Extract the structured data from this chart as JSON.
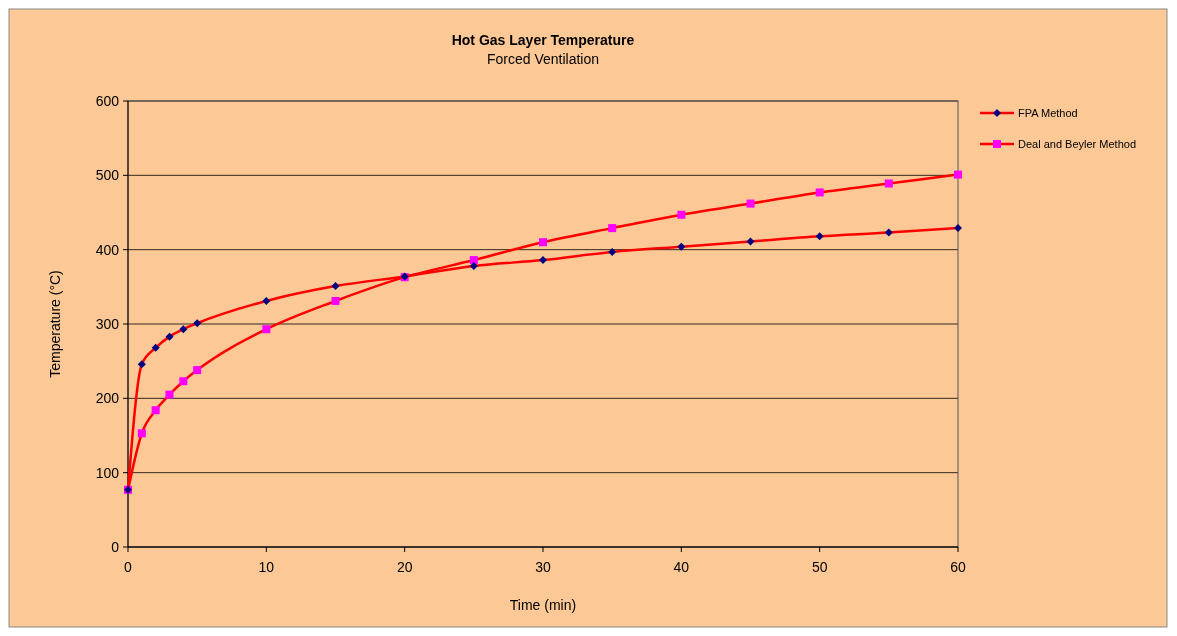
{
  "chart_data": {
    "type": "line",
    "title": "Hot Gas Layer  Temperature",
    "subtitle": "Forced Ventilation",
    "xlabel": "Time (min)",
    "ylabel": "Temperature  (°C)",
    "x": [
      0,
      1,
      2,
      3,
      4,
      5,
      10,
      15,
      20,
      25,
      30,
      35,
      40,
      45,
      50,
      55,
      60
    ],
    "xlim": [
      0,
      60
    ],
    "xticks": [
      0,
      10,
      20,
      30,
      40,
      50,
      60
    ],
    "ylim": [
      0,
      600
    ],
    "yticks": [
      0,
      100,
      200,
      300,
      400,
      500,
      600
    ],
    "grid": "y",
    "legend": "right",
    "line_style": "solid",
    "series": [
      {
        "name": "FPA Method",
        "color": "#ff0000",
        "marker": "diamond",
        "colors": [
          "#000080",
          "#000080",
          "#000080",
          "#000080",
          "#000080",
          "#000080",
          "#000080",
          "#000080",
          "#000080",
          "#000080",
          "#000080",
          "#000080",
          "#000080",
          "#000080",
          "#000080",
          "#000080",
          "#000080"
        ],
        "values": [
          77,
          246,
          268,
          283,
          293,
          301,
          331,
          351,
          364,
          378,
          386,
          397,
          404,
          411,
          418,
          423,
          429
        ]
      },
      {
        "name": "Deal and Beyler Method",
        "color": "#ff0000",
        "marker": "square",
        "colors": [
          "#ff00ff",
          "#ff00ff",
          "#ff00ff",
          "#ff00ff",
          "#ff00ff",
          "#ff00ff",
          "#ff00ff",
          "#ff00ff",
          "#ff00ff",
          "#ff00ff",
          "#ff00ff",
          "#ff00ff",
          "#ff00ff",
          "#ff00ff",
          "#ff00ff",
          "#ff00ff",
          "#ff00ff"
        ],
        "values": [
          77,
          153,
          184,
          205,
          223,
          238,
          293,
          331,
          363,
          386,
          410,
          429,
          447,
          462,
          477,
          489,
          501
        ]
      }
    ]
  }
}
